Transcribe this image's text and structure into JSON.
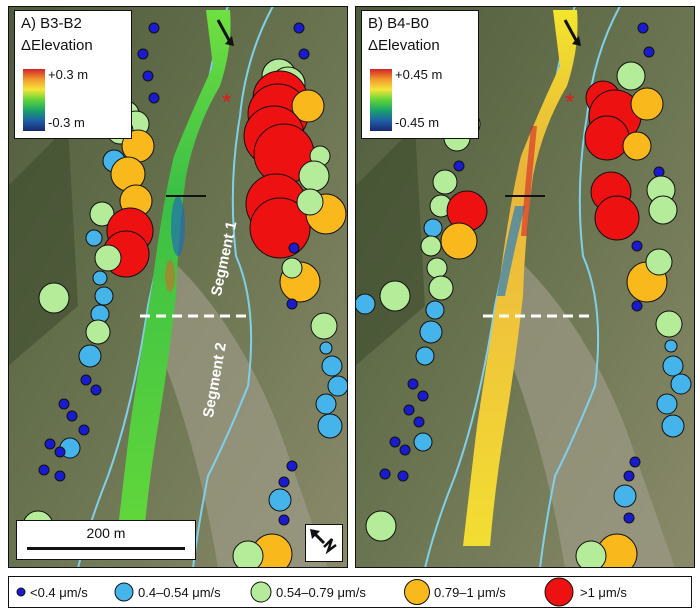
{
  "panels": [
    {
      "title": "A) B3-B2",
      "subtitle": "ΔElevation",
      "scale_max": "+0.3 m",
      "scale_min": "-0.3 m",
      "segment1": "Segment 1",
      "segment2": "Segment 2"
    },
    {
      "title": "B) B4-B0",
      "subtitle": "ΔElevation",
      "scale_max": "+0.45 m",
      "scale_min": "-0.45 m"
    }
  ],
  "scale_bar": "200 m",
  "north_arrow": "north-arrow-icon",
  "marker_legend": [
    {
      "label": "<0.4 μm/s",
      "color": "#1a1ad0"
    },
    {
      "label": "0.4–0.54 μm/s",
      "color": "#45b4ea"
    },
    {
      "label": "0.54–0.79 μm/s",
      "color": "#b5ec9a"
    },
    {
      "label": "0.79–1 μm/s",
      "color": "#f9b81c"
    },
    {
      "label": ">1 μm/s",
      "color": "#ee1111"
    }
  ],
  "colors": {
    "terrain": "#5e6a45",
    "river_outline": "#7fd0ea",
    "change_a": "#57d43a",
    "change_b": "#e6c829"
  }
}
